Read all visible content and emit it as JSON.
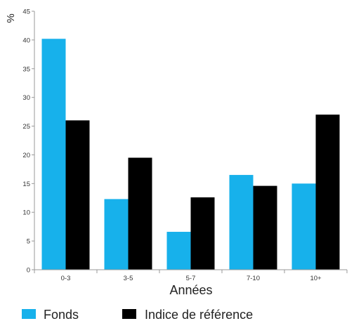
{
  "chart_data": {
    "type": "bar",
    "categories": [
      "0-3",
      "3-5",
      "5-7",
      "7-10",
      "10+"
    ],
    "series": [
      {
        "name": "Fonds",
        "values": [
          40.2,
          12.3,
          6.6,
          16.5,
          15.0
        ],
        "color": "#17b1eb"
      },
      {
        "name": "Indice de référence",
        "values": [
          26.0,
          19.5,
          12.6,
          14.6,
          27.0
        ],
        "color": "#000000"
      }
    ],
    "xlabel": "Années",
    "ylabel": "%",
    "ylim": [
      0,
      45
    ],
    "yticks": [
      0,
      5,
      10,
      15,
      20,
      25,
      30,
      35,
      40,
      45
    ],
    "grid": false,
    "legend_position": "bottom"
  }
}
